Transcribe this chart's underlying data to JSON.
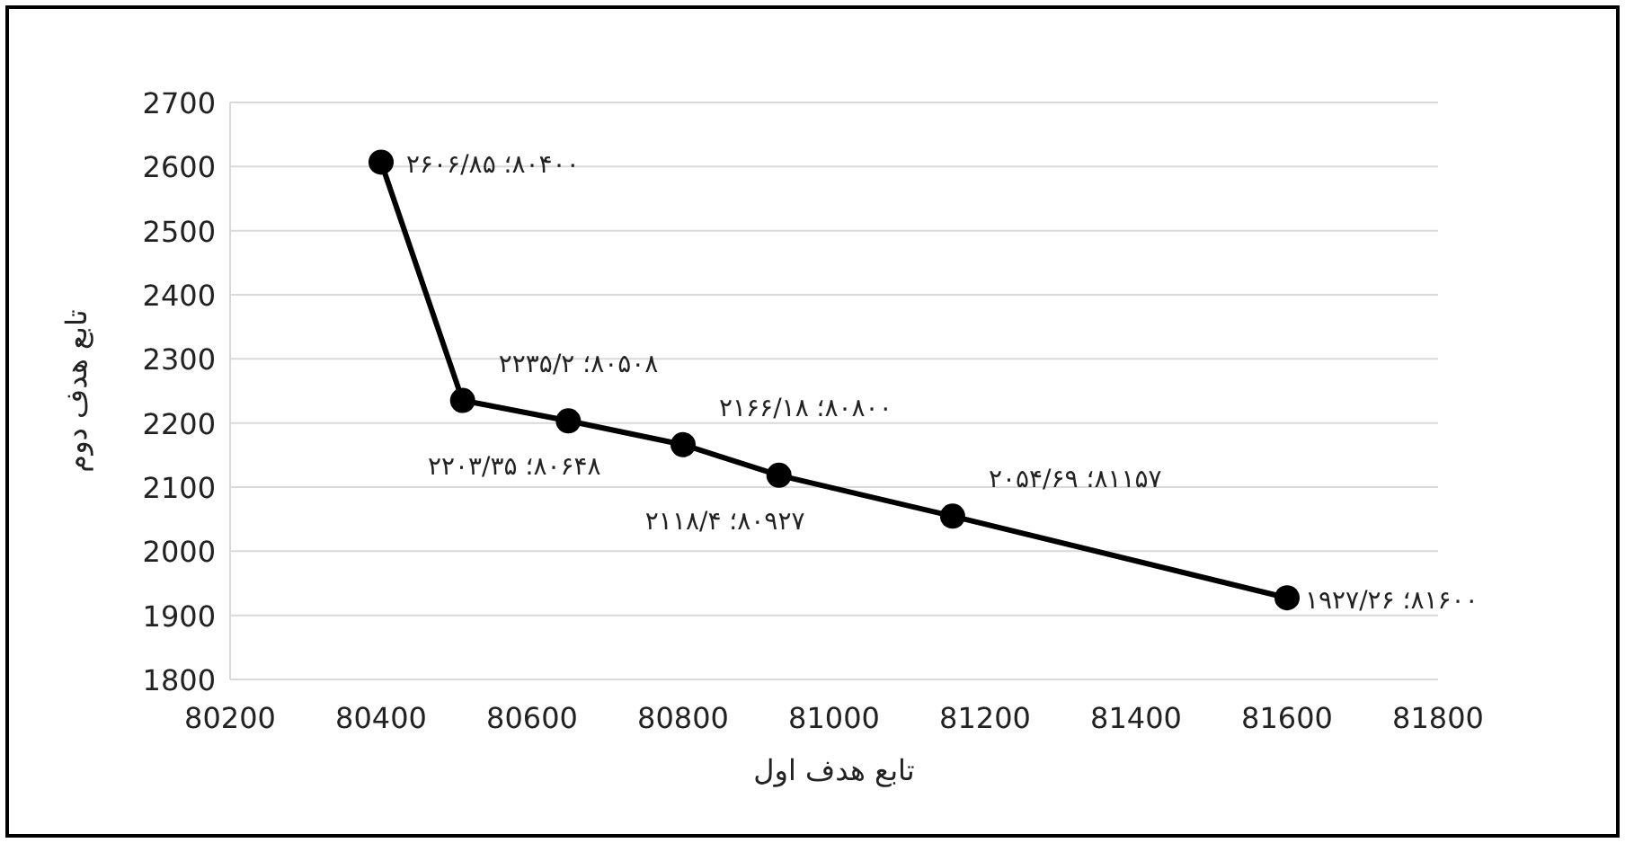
{
  "chart_data": {
    "type": "line",
    "xlabel": "تابع هدف اول",
    "ylabel": "تابع هدف دوم",
    "xlim": [
      80200,
      81800
    ],
    "xticks": [
      80200,
      80400,
      80600,
      80800,
      81000,
      81200,
      81400,
      81600,
      81800
    ],
    "ylim": [
      1800,
      2700
    ],
    "yticks": [
      1800,
      1900,
      2000,
      2100,
      2200,
      2300,
      2400,
      2500,
      2600,
      2700
    ],
    "grid": "y",
    "marker": "circle",
    "line_style": "solid",
    "series": [
      {
        "color": "#000000",
        "x": [
          80400,
          80508,
          80648,
          80800,
          80927,
          81157,
          81600
        ],
        "values": [
          2606.85,
          2235.2,
          2203.35,
          2166.18,
          2118.4,
          2054.69,
          1927.26
        ]
      }
    ],
    "annotations": [
      {
        "text": "۸۰۴۰۰؛ ۲۶۰۶/۸۵",
        "x": 80400,
        "y": 2606.85
      },
      {
        "text": "۸۰۵۰۸؛ ۲۲۳۵/۲",
        "x": 80508,
        "y": 2235.2
      },
      {
        "text": "۸۰۶۴۸؛ ۲۲۰۳/۳۵",
        "x": 80648,
        "y": 2203.35
      },
      {
        "text": "۸۰۸۰۰؛ ۲۱۶۶/۱۸",
        "x": 80800,
        "y": 2166.18
      },
      {
        "text": "۸۰۹۲۷؛ ۲۱۱۸/۴",
        "x": 80927,
        "y": 2118.4
      },
      {
        "text": "۸۱۱۵۷؛ ۲۰۵۴/۶۹",
        "x": 81157,
        "y": 2054.69
      },
      {
        "text": "۸۱۶۰۰؛ ۱۹۲۷/۲۶",
        "x": 81600,
        "y": 1927.26
      }
    ]
  }
}
